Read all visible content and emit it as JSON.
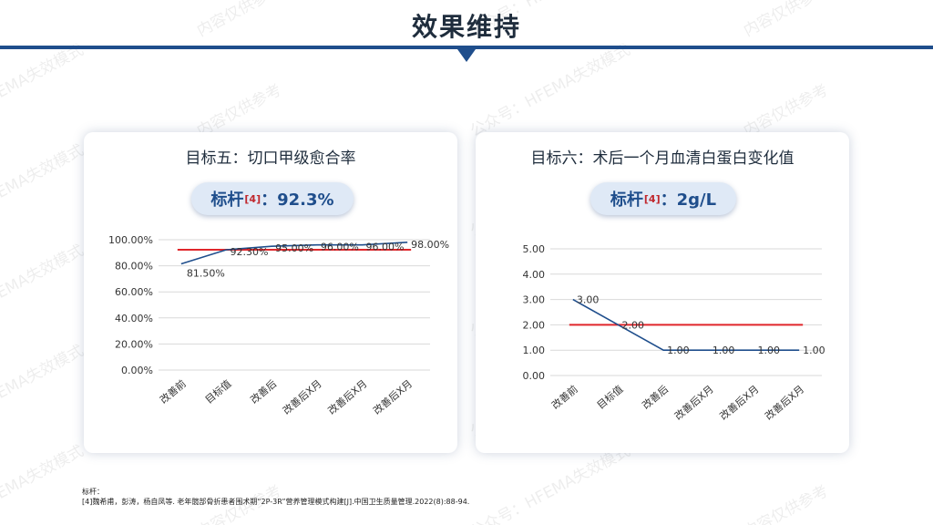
{
  "slide": {
    "title": "效果维持"
  },
  "watermark": {
    "lines": [
      "公众号：HFEMA失效模式",
      "内容仅供参考"
    ]
  },
  "cards": [
    {
      "title": "目标五：切口甲级愈合率",
      "benchmark": {
        "label": "标杆",
        "ref": "[4]",
        "value": "：92.3%"
      }
    },
    {
      "title": "目标六：术后一个月血清白蛋白变化值",
      "benchmark": {
        "label": "标杆",
        "ref": "[4]",
        "value": "：2g/L"
      }
    }
  ],
  "footnote": {
    "line1": "标杆：",
    "line2": "[4]魏希甫，彭涛，杨自凤等. 老年髋部骨折患者围术期“2P-3R”营养管理模式构建[J].中国卫生质量管理.2022(8):88-94."
  },
  "colors": {
    "series": "#1f4e8c",
    "benchmark": "#e0262b",
    "grid": "#d9d9d9"
  },
  "chart_data": [
    {
      "type": "line",
      "categories": [
        "改善前",
        "目标值",
        "改善后",
        "改善后X月",
        "改善后X月",
        "改善后X月"
      ],
      "y_tick_labels": [
        "0.00%",
        "20.00%",
        "40.00%",
        "60.00%",
        "80.00%",
        "100.00%"
      ],
      "ylim": [
        0,
        100
      ],
      "series": [
        {
          "values": [
            81.5,
            92.3,
            95.0,
            96.0,
            96.0,
            98.0
          ],
          "labels": [
            "81.50%",
            "92.30%",
            "95.00%",
            "96.00%",
            "96.00%",
            "98.00%"
          ]
        }
      ],
      "benchmark_line": 92.3,
      "grid": true
    },
    {
      "type": "line",
      "categories": [
        "改善前",
        "目标值",
        "改善后",
        "改善后X月",
        "改善后X月",
        "改善后X月"
      ],
      "y_tick_labels": [
        "0.00",
        "1.00",
        "2.00",
        "3.00",
        "4.00",
        "5.00"
      ],
      "ylim": [
        0,
        5
      ],
      "series": [
        {
          "values": [
            3.0,
            2.0,
            1.0,
            1.0,
            1.0,
            1.0
          ],
          "labels": [
            "3.00",
            "2.00",
            "1.00",
            "1.00",
            "1.00",
            "1.00"
          ]
        }
      ],
      "benchmark_line": 2.0,
      "grid": true
    }
  ]
}
